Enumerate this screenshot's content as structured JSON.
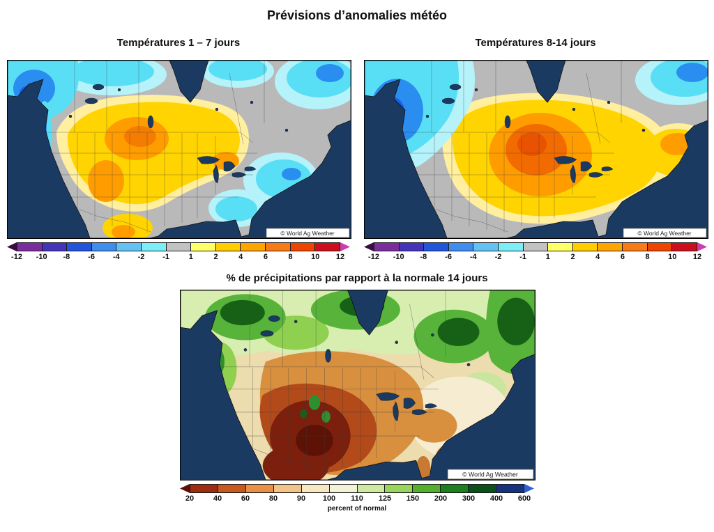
{
  "title": "Prévisions d’anomalies météo",
  "maps": {
    "temp1": {
      "title": "Températures 1 – 7 jours"
    },
    "temp2": {
      "title": "Températures 8-14 jours"
    },
    "precip": {
      "title": "% de précipitations par rapport à la normale 14 jours"
    }
  },
  "watermark": "© World Ag Weather",
  "legends": {
    "temperature": {
      "labels": [
        "-12",
        "-10",
        "-8",
        "-6",
        "-4",
        "-2",
        "-1",
        "1",
        "2",
        "4",
        "6",
        "8",
        "10",
        "12"
      ],
      "segment_colors": [
        "#7b2d9e",
        "#4433bb",
        "#2255dd",
        "#3e8ef0",
        "#62c2f5",
        "#7ceef8",
        "#c2c2c2",
        "#ffff66",
        "#ffcc00",
        "#ffa500",
        "#f97b16",
        "#ee4400",
        "#cc0f1e"
      ],
      "tip_left_color": "#3a0d42",
      "tip_right_color": "#cf3cab"
    },
    "precipitation": {
      "labels": [
        "20",
        "40",
        "60",
        "80",
        "90",
        "100",
        "110",
        "125",
        "150",
        "200",
        "300",
        "400",
        "600"
      ],
      "segment_colors": [
        "#a02c10",
        "#c75a1e",
        "#e89048",
        "#f3c488",
        "#f7e7c3",
        "#f2f2d8",
        "#cfe9a2",
        "#98d45e",
        "#55b02e",
        "#1e7f1e",
        "#0d4f18",
        "#16337f"
      ],
      "tip_left_color": "#5e0f06",
      "tip_right_color": "#2f5fd0",
      "caption": "percent of normal"
    }
  }
}
